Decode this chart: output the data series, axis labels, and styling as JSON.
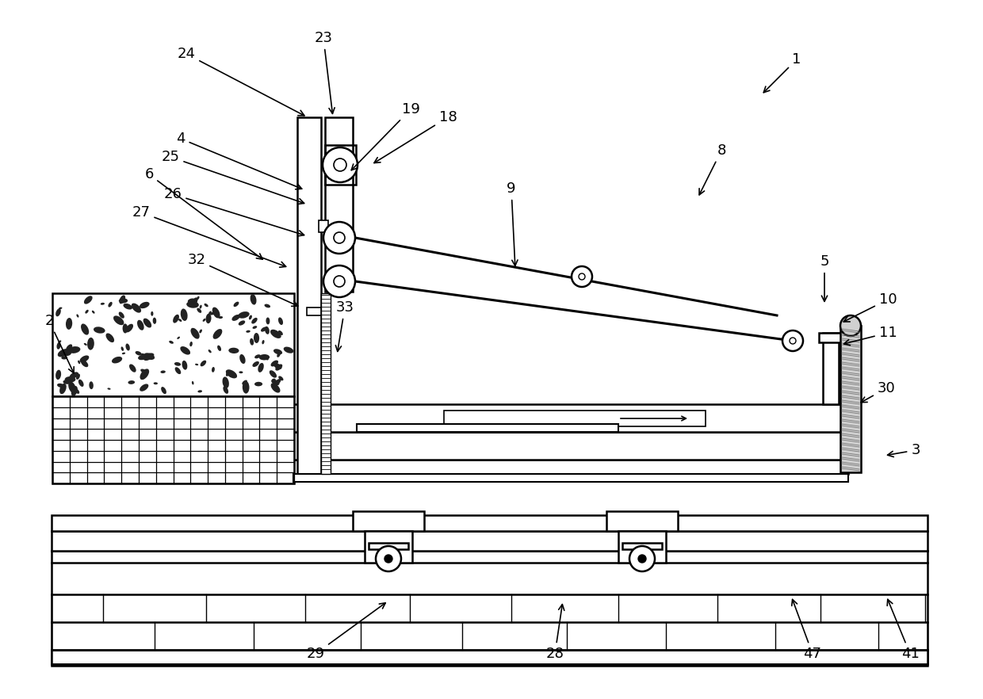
{
  "bg": "#ffffff",
  "lc": "#000000",
  "lw": 1.8,
  "labels": [
    [
      1,
      1005,
      75,
      960,
      120
    ],
    [
      2,
      62,
      405,
      95,
      475
    ],
    [
      3,
      1155,
      568,
      1115,
      575
    ],
    [
      4,
      228,
      175,
      385,
      240
    ],
    [
      5,
      1040,
      330,
      1040,
      385
    ],
    [
      6,
      188,
      220,
      335,
      330
    ],
    [
      8,
      910,
      190,
      880,
      250
    ],
    [
      9,
      645,
      238,
      650,
      340
    ],
    [
      10,
      1120,
      378,
      1060,
      408
    ],
    [
      11,
      1120,
      420,
      1060,
      435
    ],
    [
      18,
      565,
      148,
      468,
      208
    ],
    [
      19,
      518,
      138,
      440,
      218
    ],
    [
      23,
      408,
      48,
      420,
      148
    ],
    [
      24,
      235,
      68,
      388,
      148
    ],
    [
      25,
      215,
      198,
      388,
      258
    ],
    [
      26,
      218,
      245,
      388,
      298
    ],
    [
      27,
      178,
      268,
      365,
      338
    ],
    [
      28,
      700,
      825,
      710,
      758
    ],
    [
      29,
      398,
      825,
      490,
      758
    ],
    [
      30,
      1118,
      490,
      1082,
      510
    ],
    [
      32,
      248,
      328,
      380,
      388
    ],
    [
      33,
      435,
      388,
      425,
      448
    ],
    [
      41,
      1148,
      825,
      1118,
      752
    ],
    [
      47,
      1025,
      825,
      998,
      752
    ]
  ]
}
